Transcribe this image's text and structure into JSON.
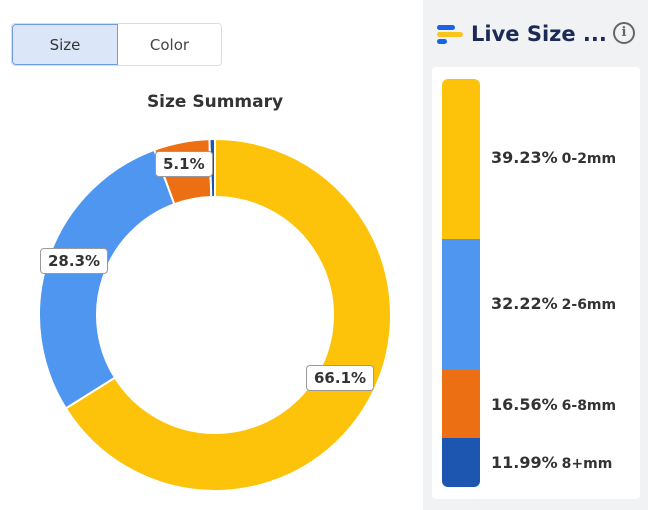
{
  "toggle": {
    "size_label": "Size",
    "color_label": "Color",
    "selected": "Size"
  },
  "summary": {
    "title": "Size Summary",
    "labels": [
      "66.1%",
      "28.3%",
      "5.1%"
    ]
  },
  "panel": {
    "title": "Live Size ...",
    "info_icon": "info-icon",
    "bands": [
      {
        "percent": "39.23%",
        "range": "0-2mm"
      },
      {
        "percent": "32.22%",
        "range": "2-6mm"
      },
      {
        "percent": "16.56%",
        "range": "6-8mm"
      },
      {
        "percent": "11.99%",
        "range": "8+mm"
      }
    ]
  },
  "colors": {
    "yellow": "#fdc20a",
    "blue": "#4f96f0",
    "orange": "#ec7013",
    "navy": "#1c56b0",
    "logo_blue": "#1a62e6",
    "logo_yellow": "#f8c51a"
  },
  "chart_data": {
    "type": "pie",
    "title": "Size Summary",
    "categories": [
      "",
      "",
      "",
      ""
    ],
    "values": [
      66.1,
      28.3,
      5.1,
      0.5
    ],
    "colors": [
      "#fdc20a",
      "#4f96f0",
      "#ec7013",
      "#1c56b0"
    ]
  }
}
